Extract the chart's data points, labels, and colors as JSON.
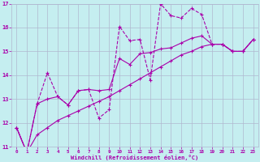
{
  "xlabel": "Windchill (Refroidissement éolien,°C)",
  "background_color": "#c5eef0",
  "line_color": "#aa00aa",
  "grid_color": "#b0b8d0",
  "xlim": [
    -0.5,
    23.5
  ],
  "ylim": [
    11,
    17
  ],
  "xticks": [
    0,
    1,
    2,
    3,
    4,
    5,
    6,
    7,
    8,
    9,
    10,
    11,
    12,
    13,
    14,
    15,
    16,
    17,
    18,
    19,
    20,
    21,
    22,
    23
  ],
  "yticks": [
    11,
    12,
    13,
    14,
    15,
    16,
    17
  ],
  "line1_x": [
    0,
    1,
    2,
    3,
    4,
    5,
    6,
    7,
    8,
    9,
    10,
    11,
    12,
    13,
    14,
    15,
    16,
    17,
    18,
    19,
    20,
    21,
    22,
    23
  ],
  "line1_y": [
    11.8,
    10.75,
    12.8,
    14.1,
    13.1,
    12.75,
    13.35,
    13.4,
    12.2,
    12.55,
    16.05,
    15.45,
    15.5,
    13.8,
    17.0,
    16.5,
    16.4,
    16.8,
    16.55,
    15.3,
    15.3,
    15.0,
    15.0,
    15.5
  ],
  "line2_x": [
    0,
    1,
    2,
    3,
    4,
    5,
    6,
    7,
    8,
    9,
    10,
    11,
    12,
    13,
    14,
    15,
    16,
    17,
    18,
    19,
    20,
    21,
    22,
    23
  ],
  "line2_y": [
    11.8,
    10.75,
    12.8,
    13.0,
    13.1,
    12.75,
    13.35,
    13.4,
    13.35,
    13.4,
    14.7,
    14.45,
    14.9,
    14.95,
    15.1,
    15.15,
    15.35,
    15.55,
    15.65,
    15.3,
    15.3,
    15.0,
    15.0,
    15.5
  ],
  "line3_x": [
    0,
    1,
    2,
    3,
    4,
    5,
    6,
    7,
    8,
    9,
    10,
    11,
    12,
    13,
    14,
    15,
    16,
    17,
    18,
    19,
    20,
    21,
    22,
    23
  ],
  "line3_y": [
    11.8,
    10.75,
    11.5,
    11.8,
    12.1,
    12.3,
    12.5,
    12.7,
    12.9,
    13.1,
    13.35,
    13.6,
    13.85,
    14.1,
    14.35,
    14.6,
    14.85,
    15.0,
    15.2,
    15.3,
    15.3,
    15.0,
    15.0,
    15.5
  ]
}
